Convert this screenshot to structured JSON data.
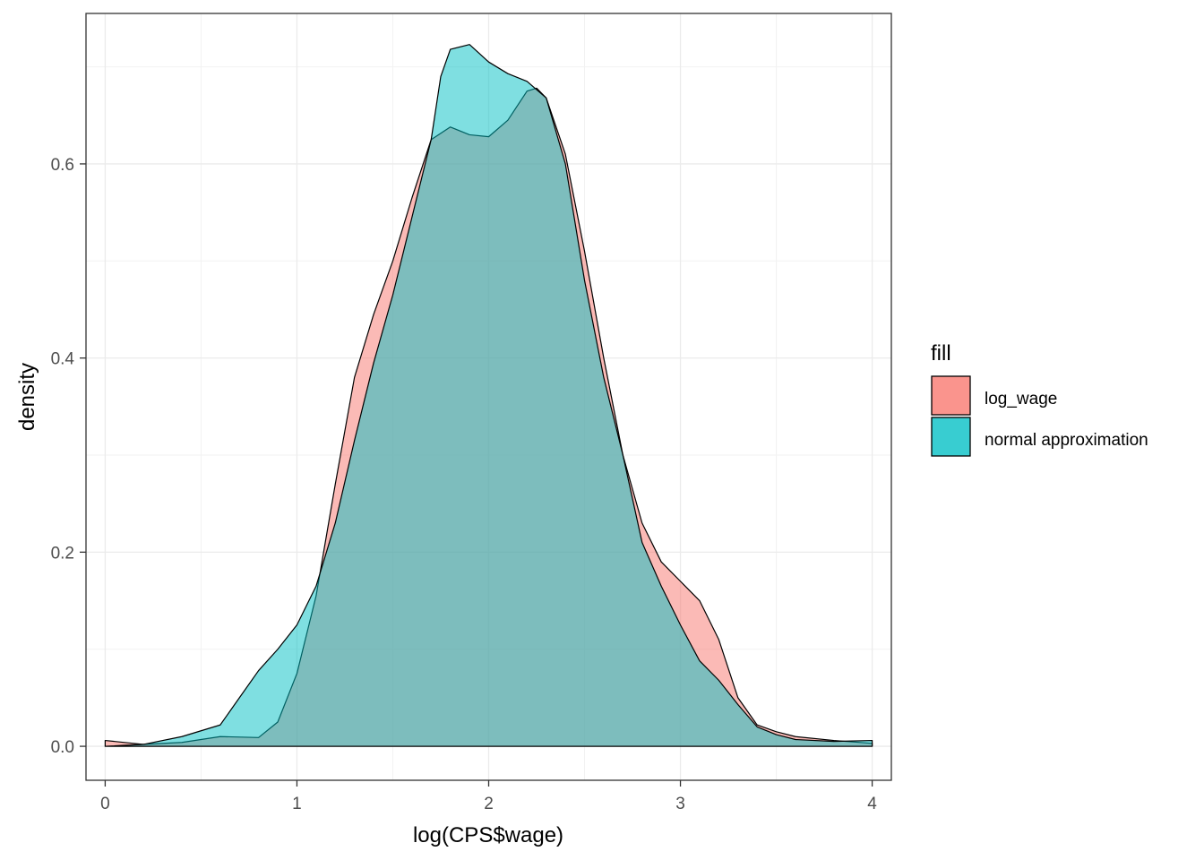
{
  "chart_data": {
    "type": "area",
    "xlabel": "log(CPS$wage)",
    "ylabel": "density",
    "xlim": [
      -0.1,
      4.1
    ],
    "ylim": [
      -0.035,
      0.755
    ],
    "x_ticks": [
      0,
      1,
      2,
      3,
      4
    ],
    "y_ticks": [
      0.0,
      0.2,
      0.4,
      0.6
    ],
    "x_tick_labels": [
      "0",
      "1",
      "2",
      "3",
      "4"
    ],
    "y_tick_labels": [
      "0.0",
      "0.2",
      "0.4",
      "0.6"
    ],
    "grid": true,
    "legend": {
      "title": "fill",
      "position": "right"
    },
    "series": [
      {
        "name": "log_wage",
        "color": "#F8766D",
        "points": [
          [
            0,
            0.006
          ],
          [
            0.2,
            0.002
          ],
          [
            0.4,
            0.004
          ],
          [
            0.6,
            0.01
          ],
          [
            0.8,
            0.009
          ],
          [
            0.9,
            0.025
          ],
          [
            1.0,
            0.075
          ],
          [
            1.05,
            0.115
          ],
          [
            1.1,
            0.155
          ],
          [
            1.2,
            0.27
          ],
          [
            1.3,
            0.38
          ],
          [
            1.4,
            0.445
          ],
          [
            1.5,
            0.5
          ],
          [
            1.6,
            0.565
          ],
          [
            1.7,
            0.625
          ],
          [
            1.8,
            0.638
          ],
          [
            1.9,
            0.63
          ],
          [
            2.0,
            0.628
          ],
          [
            2.1,
            0.645
          ],
          [
            2.2,
            0.675
          ],
          [
            2.25,
            0.678
          ],
          [
            2.3,
            0.668
          ],
          [
            2.4,
            0.61
          ],
          [
            2.5,
            0.51
          ],
          [
            2.6,
            0.4
          ],
          [
            2.7,
            0.3
          ],
          [
            2.8,
            0.23
          ],
          [
            2.9,
            0.19
          ],
          [
            3.0,
            0.17
          ],
          [
            3.1,
            0.15
          ],
          [
            3.2,
            0.11
          ],
          [
            3.3,
            0.05
          ],
          [
            3.4,
            0.022
          ],
          [
            3.5,
            0.015
          ],
          [
            3.6,
            0.01
          ],
          [
            3.8,
            0.006
          ],
          [
            4.0,
            0.003
          ]
        ]
      },
      {
        "name": "normal approximation",
        "color": "#00BFC4",
        "points": [
          [
            0,
            0.0
          ],
          [
            0.2,
            0.002
          ],
          [
            0.4,
            0.01
          ],
          [
            0.6,
            0.022
          ],
          [
            0.7,
            0.05
          ],
          [
            0.8,
            0.078
          ],
          [
            0.9,
            0.1
          ],
          [
            1.0,
            0.125
          ],
          [
            1.1,
            0.165
          ],
          [
            1.2,
            0.23
          ],
          [
            1.3,
            0.315
          ],
          [
            1.4,
            0.395
          ],
          [
            1.5,
            0.465
          ],
          [
            1.6,
            0.545
          ],
          [
            1.7,
            0.625
          ],
          [
            1.75,
            0.69
          ],
          [
            1.8,
            0.718
          ],
          [
            1.9,
            0.723
          ],
          [
            2.0,
            0.705
          ],
          [
            2.1,
            0.693
          ],
          [
            2.2,
            0.685
          ],
          [
            2.3,
            0.668
          ],
          [
            2.4,
            0.6
          ],
          [
            2.5,
            0.48
          ],
          [
            2.6,
            0.38
          ],
          [
            2.7,
            0.3
          ],
          [
            2.8,
            0.21
          ],
          [
            2.9,
            0.165
          ],
          [
            3.0,
            0.125
          ],
          [
            3.1,
            0.088
          ],
          [
            3.2,
            0.068
          ],
          [
            3.3,
            0.043
          ],
          [
            3.4,
            0.02
          ],
          [
            3.5,
            0.012
          ],
          [
            3.6,
            0.007
          ],
          [
            3.8,
            0.005
          ],
          [
            4.0,
            0.006
          ]
        ]
      }
    ]
  }
}
